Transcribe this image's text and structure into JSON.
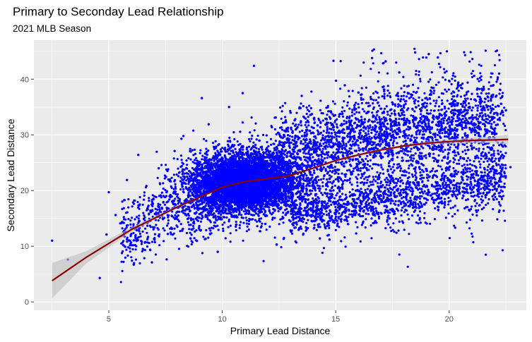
{
  "chart_data": {
    "type": "scatter",
    "title": "Primary to Seconday Lead Relationship",
    "subtitle": "2021 MLB Season",
    "xlabel": "Primary Lead Distance",
    "ylabel": "Secondary Lead Distance",
    "xlim": [
      1.7,
      23.4
    ],
    "ylim": [
      -1.5,
      47
    ],
    "x_ticks": [
      5,
      10,
      15,
      20
    ],
    "y_ticks": [
      0,
      10,
      20,
      30,
      40
    ],
    "grid": true,
    "legend": "none",
    "colors": {
      "points": "#0000ff",
      "smooth_line": "#8b0000",
      "confidence_band": "#bebebe",
      "panel_background": "#ebebeb",
      "grid": "#ffffff"
    },
    "series": [
      {
        "kind": "scatter",
        "points": [
          [
            2.5,
            11.0
          ],
          [
            3.2,
            7.6
          ],
          [
            4.6,
            4.3
          ],
          [
            4.9,
            12.1
          ],
          [
            5.0,
            19.7
          ],
          [
            5.3,
            15.6
          ],
          [
            5.8,
            21.9
          ],
          [
            6.1,
            6.7
          ],
          [
            6.3,
            26.4
          ],
          [
            6.5,
            9.5
          ],
          [
            6.9,
            7.1
          ],
          [
            7.2,
            24.0
          ],
          [
            7.6,
            12.2
          ],
          [
            7.9,
            27.1
          ],
          [
            8.2,
            29.3
          ],
          [
            8.6,
            11.4
          ],
          [
            9.1,
            36.6
          ],
          [
            9.4,
            31.9
          ],
          [
            10.3,
            35.0
          ],
          [
            10.9,
            37.5
          ],
          [
            11.4,
            42.4
          ],
          [
            11.9,
            14.0
          ],
          [
            12.8,
            32.6
          ],
          [
            13.5,
            37.0
          ],
          [
            14.2,
            31.7
          ],
          [
            14.9,
            43.3
          ],
          [
            15.4,
            38.9
          ],
          [
            16.0,
            37.6
          ],
          [
            16.6,
            43.8
          ],
          [
            17.2,
            43.2
          ],
          [
            17.8,
            41.2
          ],
          [
            18.5,
            44.8
          ],
          [
            19.1,
            44.5
          ],
          [
            19.5,
            43.9
          ],
          [
            19.9,
            45.0
          ],
          [
            20.4,
            39.4
          ],
          [
            21.1,
            40.6
          ],
          [
            21.5,
            35.1
          ],
          [
            22.2,
            41.0
          ],
          [
            22.5,
            34.4
          ],
          [
            22.7,
            24.2
          ],
          [
            15.9,
            12.3
          ],
          [
            16.7,
            14.2
          ],
          [
            18.8,
            19.8
          ],
          [
            20.2,
            21.8
          ],
          [
            21.7,
            22.7
          ],
          [
            14.3,
            11.4
          ],
          [
            17.5,
            16.3
          ],
          [
            12.4,
            10.3
          ],
          [
            9.8,
            9.0
          ]
        ]
      },
      {
        "kind": "smooth",
        "name": "",
        "x": [
          2.5,
          4,
          6,
          8,
          10,
          11,
          12,
          13,
          14,
          15,
          16,
          17,
          18,
          19,
          20,
          21,
          22,
          22.6
        ],
        "y": [
          3.8,
          8.0,
          13.0,
          17.0,
          20.6,
          21.6,
          22.1,
          22.7,
          24.0,
          25.4,
          26.4,
          27.3,
          28.0,
          28.5,
          28.8,
          29.0,
          29.1,
          29.2
        ],
        "ci_lower": [
          0.6,
          6.9,
          12.6,
          16.8,
          20.5,
          21.5,
          22.0,
          22.6,
          23.9,
          25.2,
          26.2,
          27.1,
          27.8,
          28.2,
          28.4,
          28.5,
          28.5,
          28.3
        ],
        "ci_upper": [
          7.0,
          9.1,
          13.4,
          17.2,
          20.7,
          21.7,
          22.2,
          22.8,
          24.1,
          25.6,
          26.6,
          27.5,
          28.2,
          28.8,
          29.2,
          29.5,
          29.7,
          30.1
        ]
      }
    ]
  }
}
